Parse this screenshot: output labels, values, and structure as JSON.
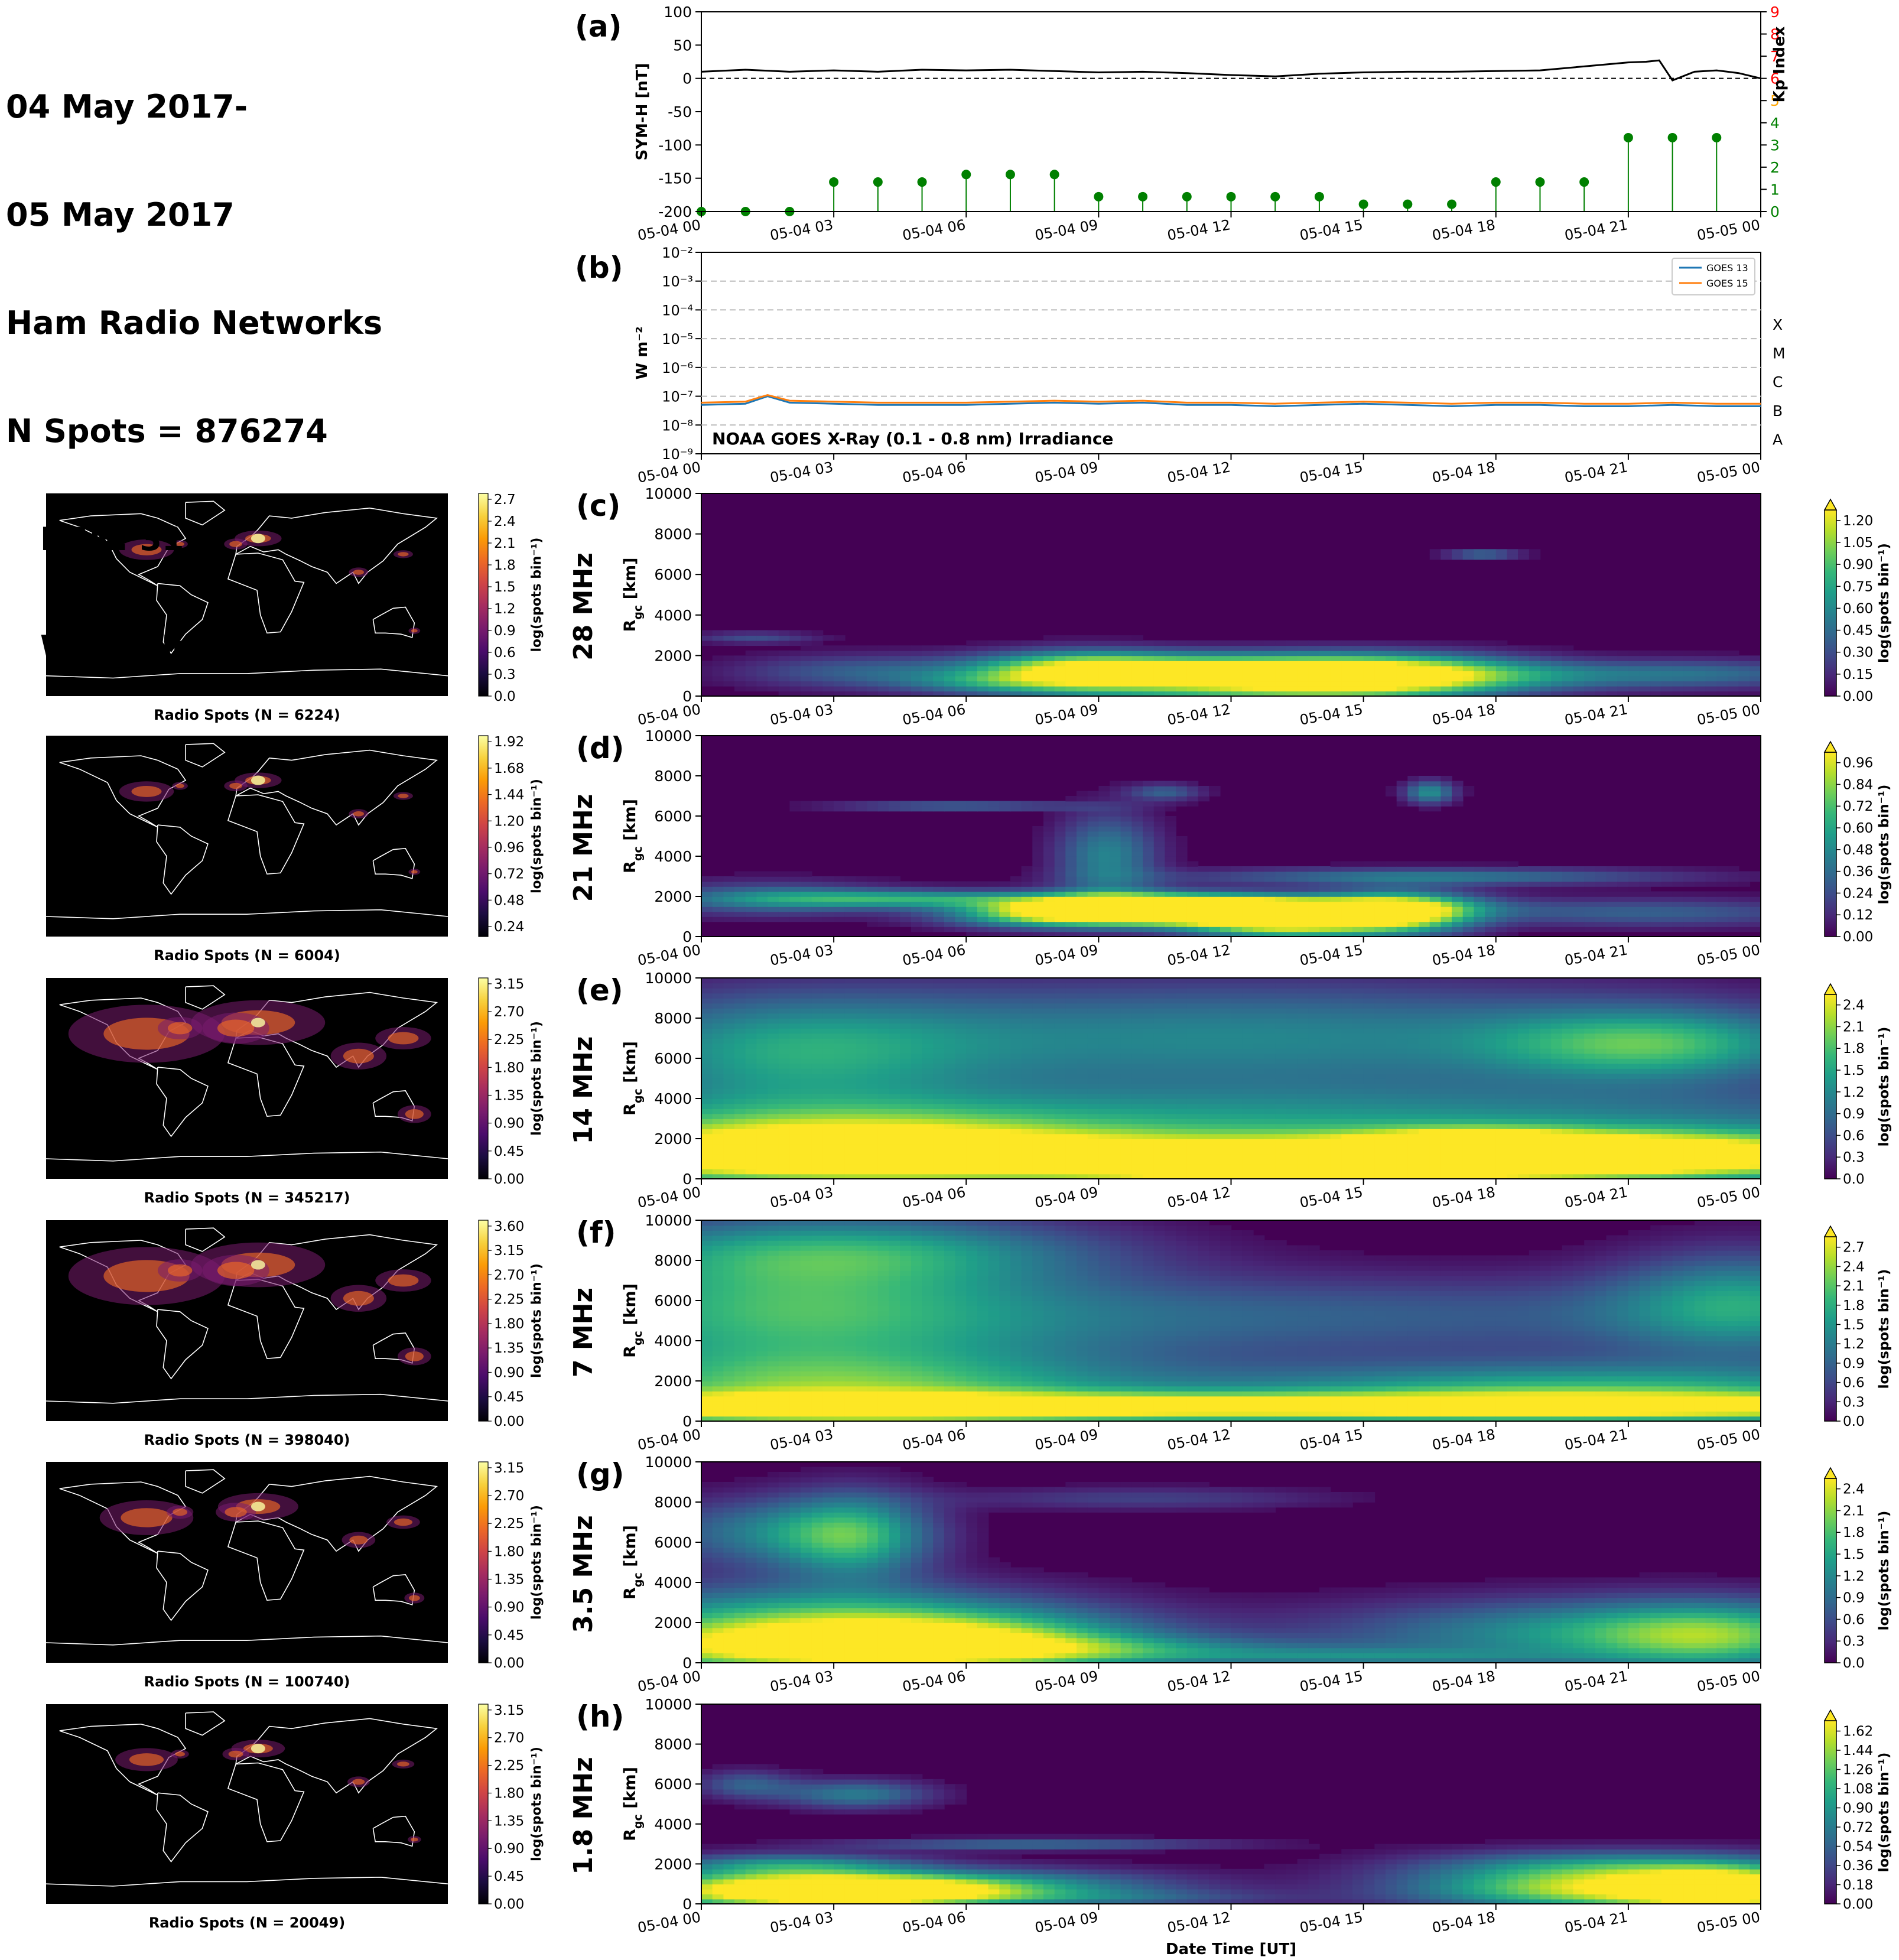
{
  "header": {
    "line1": "04 May 2017-",
    "line2": "05 May 2017",
    "line3": "Ham Radio Networks",
    "line4": "N Spots = 876274",
    "line5": "RBN: 31%",
    "line6": "WSPRNet: 69%"
  },
  "time_ticks": [
    "05-04 00",
    "05-04 03",
    "05-04 06",
    "05-04 09",
    "05-04 12",
    "05-04 15",
    "05-04 18",
    "05-04 21",
    "05-05 00"
  ],
  "colors": {
    "symh": "#000000",
    "kp_low": "#008000",
    "kp_mid": "#ffa500",
    "kp_high": "#ff0000",
    "goes13": "#1f77b4",
    "goes15": "#ff7f0e",
    "map_bg": "#000000",
    "coast": "#ffffff"
  },
  "chart_data": [
    {
      "panel": "(a)",
      "type": "line",
      "ylabel": "SYM-H [nT]",
      "ylabel2": "Kp Index",
      "ylim": [
        -200,
        100
      ],
      "y_ticks": [
        100,
        50,
        0,
        -50,
        -100,
        -150,
        -200
      ],
      "y2lim": [
        0,
        9
      ],
      "y2_ticks": [
        0,
        1,
        2,
        3,
        4,
        5,
        6,
        7,
        8,
        9
      ],
      "x_hours": [
        0,
        1,
        2,
        3,
        4,
        5,
        6,
        7,
        8,
        9,
        10,
        11,
        12,
        13,
        14,
        15,
        16,
        17,
        18,
        19,
        20,
        21,
        21.4,
        21.7,
        22,
        22.5,
        23,
        23.5,
        24
      ],
      "series": [
        {
          "values": [
            10,
            13,
            10,
            12,
            10,
            13,
            12,
            13,
            11,
            9,
            10,
            8,
            5,
            3,
            7,
            9,
            10,
            10,
            11,
            12,
            18,
            24,
            25,
            27,
            -3,
            10,
            12,
            8,
            0
          ]
        }
      ],
      "kp_x_hours": [
        0,
        1,
        2,
        3,
        4,
        5,
        6,
        7,
        8,
        9,
        10,
        11,
        12,
        13,
        14,
        15,
        16,
        17,
        18,
        19,
        20,
        21,
        22,
        23
      ],
      "kp_values": [
        0,
        0,
        0,
        1.33,
        1.33,
        1.33,
        1.67,
        1.67,
        1.67,
        0.67,
        0.67,
        0.67,
        0.67,
        0.67,
        0.67,
        0.33,
        0.33,
        0.33,
        1.33,
        1.33,
        1.33,
        3.33,
        3.33,
        3.33
      ]
    },
    {
      "panel": "(b)",
      "type": "line",
      "title": "NOAA GOES X-Ray (0.1 - 0.8 nm) Irradiance",
      "ylabel": "W m⁻²",
      "yscale": "log",
      "ylim": [
        1e-09,
        0.01
      ],
      "y_tick_labels": [
        "10⁻²",
        "10⁻³",
        "10⁻⁴",
        "10⁻⁵",
        "10⁻⁶",
        "10⁻⁷",
        "10⁻⁸",
        "10⁻⁹"
      ],
      "flare_classes": [
        "X",
        "M",
        "C",
        "B",
        "A"
      ],
      "x_hours": [
        0,
        1,
        1.5,
        2,
        3,
        4,
        5,
        6,
        7,
        8,
        9,
        10,
        11,
        12,
        13,
        14,
        15,
        16,
        17,
        18,
        19,
        20,
        21,
        22,
        23,
        24
      ],
      "series": [
        {
          "name": "GOES 13",
          "values": [
            5e-08,
            5.5e-08,
            1e-07,
            6e-08,
            5.5e-08,
            5e-08,
            5e-08,
            5e-08,
            5.5e-08,
            6e-08,
            5.5e-08,
            6e-08,
            5e-08,
            5e-08,
            4.5e-08,
            5e-08,
            5.5e-08,
            5e-08,
            4.5e-08,
            5e-08,
            5e-08,
            4.5e-08,
            4.5e-08,
            5e-08,
            4.5e-08,
            4.5e-08
          ]
        },
        {
          "name": "GOES 15",
          "values": [
            6e-08,
            6.5e-08,
            1.1e-07,
            7e-08,
            6.5e-08,
            6e-08,
            6e-08,
            6e-08,
            6.5e-08,
            7e-08,
            6.5e-08,
            7e-08,
            6e-08,
            6e-08,
            5.5e-08,
            6e-08,
            6.5e-08,
            6e-08,
            5.5e-08,
            6e-08,
            6e-08,
            5.5e-08,
            5.5e-08,
            6e-08,
            5.5e-08,
            5.5e-08
          ]
        }
      ]
    },
    {
      "panel": "(c)",
      "type": "heatmap",
      "band": "28 MHz",
      "ylabel": "R_gc [km]",
      "ylim": [
        0,
        10000
      ],
      "y_ticks": [
        0,
        2000,
        4000,
        6000,
        8000,
        10000
      ],
      "cbar_label": "log(spots bin⁻¹)",
      "cbar_ticks": [
        "0.00",
        "0.15",
        "0.30",
        "0.45",
        "0.60",
        "0.75",
        "0.90",
        "1.05",
        "1.20"
      ],
      "cbar_max": 1.28,
      "map_cbar_ticks": [
        "0.0",
        "0.3",
        "0.6",
        "0.9",
        "1.2",
        "1.5",
        "1.8",
        "2.1",
        "2.4",
        "2.7"
      ],
      "map_caption": "Radio Spots (N = 6224)",
      "blobs": [
        [
          12.5,
          600,
          3,
          700,
          1.0
        ],
        [
          8.5,
          1200,
          1.5,
          700,
          0.8
        ],
        [
          15.8,
          1000,
          2,
          700,
          0.85
        ],
        [
          10.5,
          1500,
          3,
          500,
          0.55
        ],
        [
          3.5,
          1200,
          2,
          600,
          0.35
        ],
        [
          19.5,
          1000,
          2,
          500,
          0.3
        ],
        [
          23,
          1100,
          2,
          500,
          0.4
        ],
        [
          17.7,
          7000,
          0.6,
          150,
          0.5
        ],
        [
          1.2,
          2900,
          1,
          200,
          0.3
        ],
        [
          6.5,
          700,
          1.5,
          400,
          0.4
        ],
        [
          14,
          1300,
          3,
          600,
          0.5
        ]
      ]
    },
    {
      "panel": "(d)",
      "type": "heatmap",
      "band": "21 MHz",
      "ylabel": "R_gc [km]",
      "ylim": [
        0,
        10000
      ],
      "y_ticks": [
        0,
        2000,
        4000,
        6000,
        8000,
        10000
      ],
      "cbar_label": "log(spots bin⁻¹)",
      "cbar_ticks": [
        "0.00",
        "0.12",
        "0.24",
        "0.36",
        "0.48",
        "0.60",
        "0.72",
        "0.84",
        "0.96"
      ],
      "cbar_max": 1.0,
      "map_cbar_ticks": [
        "0.24",
        "0.48",
        "0.72",
        "0.96",
        "1.20",
        "1.44",
        "1.68",
        "1.92"
      ],
      "map_caption": "Radio Spots (N = 6004)",
      "blobs": [
        [
          13.2,
          800,
          1.5,
          600,
          1.0
        ],
        [
          15.8,
          1200,
          1.2,
          700,
          1.0
        ],
        [
          9,
          1400,
          2,
          500,
          0.9
        ],
        [
          11,
          1300,
          2,
          500,
          0.85
        ],
        [
          4.5,
          1900,
          2.5,
          300,
          0.5
        ],
        [
          9.2,
          4000,
          0.8,
          1500,
          0.45
        ],
        [
          5.8,
          6500,
          2,
          150,
          0.35
        ],
        [
          16.5,
          3000,
          4,
          300,
          0.4
        ],
        [
          1.5,
          1900,
          2,
          600,
          0.35
        ],
        [
          21.5,
          1200,
          3,
          500,
          0.3
        ],
        [
          16.5,
          7200,
          0.4,
          400,
          0.5
        ],
        [
          10.5,
          7200,
          0.6,
          300,
          0.3
        ],
        [
          12.5,
          1500,
          3,
          400,
          0.6
        ],
        [
          7.5,
          900,
          1.5,
          400,
          0.3
        ]
      ]
    },
    {
      "panel": "(e)",
      "type": "heatmap",
      "band": "14 MHz",
      "ylabel": "R_gc [km]",
      "ylim": [
        0,
        10000
      ],
      "y_ticks": [
        0,
        2000,
        4000,
        6000,
        8000,
        10000
      ],
      "cbar_label": "log(spots bin⁻¹)",
      "cbar_ticks": [
        "0.0",
        "0.3",
        "0.6",
        "0.9",
        "1.2",
        "1.5",
        "1.8",
        "2.1",
        "2.4"
      ],
      "cbar_max": 2.6,
      "map_cbar_ticks": [
        "0.00",
        "0.45",
        "0.90",
        "1.35",
        "1.80",
        "2.25",
        "2.70",
        "3.15"
      ],
      "map_caption": "Radio Spots (N = 345217)",
      "blobs": [
        [
          12,
          1000,
          14,
          900,
          2.4
        ],
        [
          13.5,
          600,
          3,
          500,
          2.5
        ],
        [
          3,
          1500,
          4,
          1200,
          1.9
        ],
        [
          20,
          1200,
          4,
          800,
          1.9
        ],
        [
          12,
          7000,
          8,
          2000,
          1.2
        ],
        [
          21.5,
          6700,
          2.5,
          1200,
          1.4
        ],
        [
          2,
          6200,
          3,
          2000,
          1.1
        ],
        [
          12,
          3000,
          14,
          1200,
          1.1
        ],
        [
          17.5,
          1600,
          1.5,
          500,
          2.1
        ]
      ]
    },
    {
      "panel": "(f)",
      "type": "heatmap",
      "band": "7 MHz",
      "ylabel": "R_gc [km]",
      "ylim": [
        0,
        10000
      ],
      "y_ticks": [
        0,
        2000,
        4000,
        6000,
        8000,
        10000
      ],
      "cbar_label": "log(spots bin⁻¹)",
      "cbar_ticks": [
        "0.0",
        "0.3",
        "0.6",
        "0.9",
        "1.2",
        "1.5",
        "1.8",
        "2.1",
        "2.4",
        "2.7"
      ],
      "cbar_max": 2.9,
      "map_cbar_ticks": [
        "0.00",
        "0.45",
        "0.90",
        "1.35",
        "1.80",
        "2.25",
        "2.70",
        "3.15",
        "3.60"
      ],
      "map_caption": "Radio Spots (N = 398040)",
      "blobs": [
        [
          14,
          700,
          18,
          500,
          2.6
        ],
        [
          3,
          1500,
          5,
          1500,
          2.0
        ],
        [
          2,
          6000,
          4,
          2500,
          1.4
        ],
        [
          23.5,
          6000,
          2,
          1800,
          1.3
        ],
        [
          3.5,
          8500,
          4,
          1200,
          1.2
        ],
        [
          12,
          5200,
          12,
          1500,
          0.9
        ],
        [
          20,
          1500,
          6,
          1000,
          1.8
        ]
      ]
    },
    {
      "panel": "(g)",
      "type": "heatmap",
      "band": "3.5 MHz",
      "ylabel": "R_gc [km]",
      "ylim": [
        0,
        10000
      ],
      "y_ticks": [
        0,
        2000,
        4000,
        6000,
        8000,
        10000
      ],
      "cbar_label": "log(spots bin⁻¹)",
      "cbar_ticks": [
        "0.0",
        "0.3",
        "0.6",
        "0.9",
        "1.2",
        "1.5",
        "1.8",
        "2.1",
        "2.4"
      ],
      "cbar_max": 2.6,
      "map_cbar_ticks": [
        "0.00",
        "0.45",
        "0.90",
        "1.35",
        "1.80",
        "2.25",
        "2.70",
        "3.15"
      ],
      "map_caption": "Radio Spots (N = 100740)",
      "blobs": [
        [
          2.5,
          700,
          4,
          900,
          2.2
        ],
        [
          2.5,
          2300,
          4,
          1200,
          1.5
        ],
        [
          3.5,
          6300,
          1.2,
          1500,
          1.4
        ],
        [
          1.5,
          6500,
          2,
          1200,
          1.0
        ],
        [
          6,
          1200,
          3,
          1000,
          1.2
        ],
        [
          9,
          600,
          4,
          500,
          0.9
        ],
        [
          20,
          1500,
          4,
          1200,
          1.3
        ],
        [
          23,
          1300,
          2,
          1200,
          1.3
        ],
        [
          15,
          300,
          3,
          300,
          0.7
        ],
        [
          10,
          8200,
          3,
          400,
          0.5
        ]
      ]
    },
    {
      "panel": "(h)",
      "type": "heatmap",
      "band": "1.8 MHz",
      "ylabel": "R_gc [km]",
      "ylim": [
        0,
        10000
      ],
      "y_ticks": [
        0,
        2000,
        4000,
        6000,
        8000,
        10000
      ],
      "cbar_label": "log(spots bin⁻¹)",
      "cbar_ticks": [
        "0.00",
        "0.18",
        "0.36",
        "0.54",
        "0.72",
        "0.90",
        "1.08",
        "1.26",
        "1.44",
        "1.62"
      ],
      "cbar_max": 1.7,
      "map_cbar_ticks": [
        "0.00",
        "0.45",
        "0.90",
        "1.35",
        "1.80",
        "2.25",
        "2.70",
        "3.15"
      ],
      "map_caption": "Radio Spots (N = 20049)",
      "blobs": [
        [
          1.5,
          700,
          2.5,
          700,
          1.6
        ],
        [
          4,
          600,
          2,
          500,
          1.2
        ],
        [
          20.5,
          700,
          3,
          700,
          1.5
        ],
        [
          23.3,
          700,
          1.5,
          800,
          1.5
        ],
        [
          20.5,
          1900,
          3,
          600,
          0.8
        ],
        [
          3.5,
          5500,
          1.2,
          500,
          0.7
        ],
        [
          1,
          6000,
          0.8,
          500,
          0.5
        ],
        [
          7.5,
          3000,
          3,
          200,
          0.6
        ],
        [
          6.5,
          900,
          3,
          600,
          0.9
        ],
        [
          2,
          2000,
          2,
          400,
          0.7
        ],
        [
          9,
          300,
          3,
          300,
          0.4
        ]
      ]
    }
  ],
  "xlabel": "Date Time [UT]"
}
